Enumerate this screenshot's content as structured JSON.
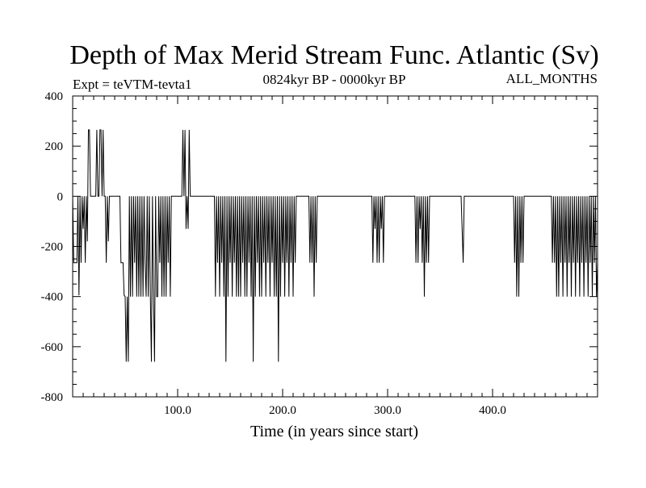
{
  "chart_data": {
    "type": "line",
    "title": "Depth of Max Merid Stream Func. Atlantic (Sv)",
    "subtitle": "0824kyr BP - 0000kyr BP",
    "experiment_label": "Expt = teVTM-tevta1",
    "months_label": "ALL_MONTHS",
    "xlabel": "Time (in years since start)",
    "ylabel": "",
    "xlim": [
      0,
      500
    ],
    "ylim": [
      -800,
      400
    ],
    "x_ticks": [
      {
        "value": 100,
        "label": "100.0"
      },
      {
        "value": 200,
        "label": "200.0"
      },
      {
        "value": 300,
        "label": "300.0"
      },
      {
        "value": 400,
        "label": "400.0"
      }
    ],
    "y_ticks": [
      {
        "value": 400,
        "label": "400"
      },
      {
        "value": 200,
        "label": "200"
      },
      {
        "value": 0,
        "label": "0"
      },
      {
        "value": -200,
        "label": "-200"
      },
      {
        "value": -400,
        "label": "-400"
      },
      {
        "value": -600,
        "label": "-600"
      },
      {
        "value": -800,
        "label": "-800"
      }
    ],
    "grid": false,
    "series": [
      {
        "name": "depth",
        "segments": [
          [
            0,
            0
          ],
          [
            1,
            -265
          ],
          [
            4,
            -265
          ],
          [
            5,
            0
          ],
          [
            6,
            -395
          ],
          [
            7,
            0
          ],
          [
            8,
            -265
          ],
          [
            9,
            0
          ],
          [
            10,
            -130
          ],
          [
            11,
            0
          ],
          [
            12,
            -265
          ],
          [
            13,
            0
          ],
          [
            14,
            -180
          ],
          [
            15,
            265
          ],
          [
            16,
            265
          ],
          [
            17,
            0
          ],
          [
            18,
            0
          ],
          [
            22,
            0
          ],
          [
            23,
            265
          ],
          [
            24,
            0
          ],
          [
            25,
            0
          ],
          [
            26,
            265
          ],
          [
            27,
            265
          ],
          [
            28,
            0
          ],
          [
            29,
            265
          ],
          [
            30,
            0
          ],
          [
            31,
            0
          ],
          [
            32,
            -265
          ],
          [
            33,
            0
          ],
          [
            34,
            -180
          ],
          [
            35,
            0
          ],
          [
            36,
            0
          ],
          [
            40,
            0
          ],
          [
            45,
            0
          ],
          [
            46,
            -265
          ],
          [
            48,
            -265
          ],
          [
            49,
            -395
          ],
          [
            50,
            -400
          ],
          [
            51,
            -660
          ],
          [
            52,
            -400
          ],
          [
            53,
            -660
          ],
          [
            54,
            0
          ],
          [
            55,
            -400
          ],
          [
            56,
            0
          ],
          [
            57,
            -400
          ],
          [
            58,
            0
          ],
          [
            59,
            -265
          ],
          [
            60,
            0
          ],
          [
            61,
            -400
          ],
          [
            62,
            0
          ],
          [
            63,
            -400
          ],
          [
            64,
            0
          ],
          [
            65,
            -400
          ],
          [
            66,
            0
          ],
          [
            67,
            -400
          ],
          [
            68,
            0
          ],
          [
            69,
            -265
          ],
          [
            70,
            -400
          ],
          [
            71,
            0
          ],
          [
            72,
            -400
          ],
          [
            73,
            0
          ],
          [
            74,
            -400
          ],
          [
            75,
            -660
          ],
          [
            76,
            0
          ],
          [
            77,
            -400
          ],
          [
            78,
            -660
          ],
          [
            79,
            0
          ],
          [
            80,
            -400
          ],
          [
            81,
            -400
          ],
          [
            82,
            0
          ],
          [
            83,
            -265
          ],
          [
            84,
            0
          ],
          [
            85,
            -400
          ],
          [
            86,
            0
          ],
          [
            87,
            -400
          ],
          [
            88,
            0
          ],
          [
            89,
            -400
          ],
          [
            90,
            0
          ],
          [
            91,
            -265
          ],
          [
            92,
            0
          ],
          [
            93,
            -400
          ],
          [
            94,
            0
          ],
          [
            95,
            0
          ],
          [
            100,
            0
          ],
          [
            104,
            0
          ],
          [
            105,
            265
          ],
          [
            106,
            0
          ],
          [
            107,
            265
          ],
          [
            108,
            -130
          ],
          [
            109,
            0
          ],
          [
            110,
            -130
          ],
          [
            111,
            265
          ],
          [
            112,
            0
          ],
          [
            115,
            0
          ],
          [
            120,
            0
          ],
          [
            125,
            0
          ],
          [
            130,
            0
          ],
          [
            135,
            0
          ],
          [
            136,
            -400
          ],
          [
            137,
            0
          ],
          [
            138,
            -265
          ],
          [
            139,
            0
          ],
          [
            140,
            -400
          ],
          [
            141,
            0
          ],
          [
            142,
            -265
          ],
          [
            143,
            0
          ],
          [
            144,
            -400
          ],
          [
            145,
            0
          ],
          [
            146,
            -660
          ],
          [
            147,
            0
          ],
          [
            148,
            -400
          ],
          [
            149,
            0
          ],
          [
            150,
            -265
          ],
          [
            151,
            0
          ],
          [
            152,
            -400
          ],
          [
            153,
            0
          ],
          [
            154,
            -265
          ],
          [
            155,
            0
          ],
          [
            156,
            -400
          ],
          [
            157,
            0
          ],
          [
            158,
            -400
          ],
          [
            159,
            0
          ],
          [
            160,
            -400
          ],
          [
            161,
            0
          ],
          [
            162,
            -265
          ],
          [
            163,
            0
          ],
          [
            164,
            -400
          ],
          [
            165,
            0
          ],
          [
            166,
            -400
          ],
          [
            167,
            0
          ],
          [
            168,
            -265
          ],
          [
            169,
            0
          ],
          [
            170,
            -400
          ],
          [
            171,
            0
          ],
          [
            172,
            -660
          ],
          [
            173,
            0
          ],
          [
            174,
            -400
          ],
          [
            175,
            0
          ],
          [
            176,
            -265
          ],
          [
            177,
            0
          ],
          [
            178,
            -400
          ],
          [
            179,
            0
          ],
          [
            180,
            -400
          ],
          [
            181,
            0
          ],
          [
            182,
            -265
          ],
          [
            183,
            0
          ],
          [
            184,
            -400
          ],
          [
            185,
            0
          ],
          [
            186,
            -265
          ],
          [
            187,
            0
          ],
          [
            188,
            -400
          ],
          [
            189,
            0
          ],
          [
            190,
            -265
          ],
          [
            191,
            0
          ],
          [
            192,
            -400
          ],
          [
            193,
            0
          ],
          [
            194,
            -400
          ],
          [
            195,
            0
          ],
          [
            196,
            -660
          ],
          [
            197,
            0
          ],
          [
            198,
            -400
          ],
          [
            199,
            0
          ],
          [
            200,
            -265
          ],
          [
            201,
            0
          ],
          [
            202,
            -400
          ],
          [
            203,
            0
          ],
          [
            204,
            -265
          ],
          [
            205,
            0
          ],
          [
            206,
            -400
          ],
          [
            207,
            0
          ],
          [
            208,
            -265
          ],
          [
            209,
            0
          ],
          [
            210,
            -400
          ],
          [
            211,
            0
          ],
          [
            212,
            -265
          ],
          [
            213,
            0
          ],
          [
            215,
            0
          ],
          [
            225,
            0
          ],
          [
            226,
            -265
          ],
          [
            227,
            0
          ],
          [
            228,
            -265
          ],
          [
            229,
            0
          ],
          [
            230,
            -400
          ],
          [
            231,
            0
          ],
          [
            232,
            -265
          ],
          [
            233,
            0
          ],
          [
            240,
            0
          ],
          [
            260,
            0
          ],
          [
            270,
            0
          ],
          [
            280,
            0
          ],
          [
            285,
            0
          ],
          [
            286,
            -265
          ],
          [
            287,
            0
          ],
          [
            288,
            -130
          ],
          [
            289,
            0
          ],
          [
            290,
            -265
          ],
          [
            291,
            0
          ],
          [
            292,
            -265
          ],
          [
            293,
            0
          ],
          [
            294,
            -130
          ],
          [
            295,
            0
          ],
          [
            296,
            -265
          ],
          [
            297,
            0
          ],
          [
            300,
            0
          ],
          [
            310,
            0
          ],
          [
            320,
            0
          ],
          [
            326,
            0
          ],
          [
            327,
            -265
          ],
          [
            328,
            0
          ],
          [
            329,
            -265
          ],
          [
            330,
            0
          ],
          [
            331,
            -130
          ],
          [
            332,
            0
          ],
          [
            333,
            -265
          ],
          [
            334,
            0
          ],
          [
            335,
            -400
          ],
          [
            336,
            0
          ],
          [
            337,
            -265
          ],
          [
            338,
            0
          ],
          [
            339,
            -265
          ],
          [
            340,
            0
          ],
          [
            350,
            0
          ],
          [
            360,
            0
          ],
          [
            370,
            0
          ],
          [
            372,
            -265
          ],
          [
            373,
            0
          ],
          [
            380,
            0
          ],
          [
            400,
            0
          ],
          [
            420,
            0
          ],
          [
            421,
            -265
          ],
          [
            422,
            0
          ],
          [
            423,
            -400
          ],
          [
            424,
            0
          ],
          [
            425,
            -400
          ],
          [
            426,
            0
          ],
          [
            427,
            -265
          ],
          [
            428,
            0
          ],
          [
            429,
            -265
          ],
          [
            430,
            0
          ],
          [
            440,
            0
          ],
          [
            456,
            0
          ],
          [
            457,
            -265
          ],
          [
            458,
            0
          ],
          [
            459,
            -265
          ],
          [
            460,
            0
          ],
          [
            461,
            -400
          ],
          [
            462,
            0
          ],
          [
            463,
            -400
          ],
          [
            464,
            0
          ],
          [
            465,
            -265
          ],
          [
            466,
            0
          ],
          [
            467,
            -400
          ],
          [
            468,
            0
          ],
          [
            469,
            -265
          ],
          [
            470,
            0
          ],
          [
            471,
            -400
          ],
          [
            472,
            0
          ],
          [
            473,
            -265
          ],
          [
            474,
            0
          ],
          [
            475,
            -400
          ],
          [
            476,
            0
          ],
          [
            477,
            -265
          ],
          [
            478,
            0
          ],
          [
            479,
            -400
          ],
          [
            480,
            0
          ],
          [
            481,
            -265
          ],
          [
            482,
            0
          ],
          [
            483,
            -400
          ],
          [
            484,
            0
          ],
          [
            485,
            -265
          ],
          [
            486,
            0
          ],
          [
            487,
            -400
          ],
          [
            488,
            0
          ],
          [
            489,
            -265
          ],
          [
            490,
            0
          ],
          [
            491,
            -400
          ],
          [
            492,
            0
          ],
          [
            493,
            -265
          ],
          [
            494,
            0
          ],
          [
            495,
            -400
          ],
          [
            496,
            0
          ],
          [
            497,
            -265
          ],
          [
            498,
            0
          ],
          [
            499,
            -400
          ],
          [
            500,
            -265
          ]
        ]
      }
    ]
  }
}
